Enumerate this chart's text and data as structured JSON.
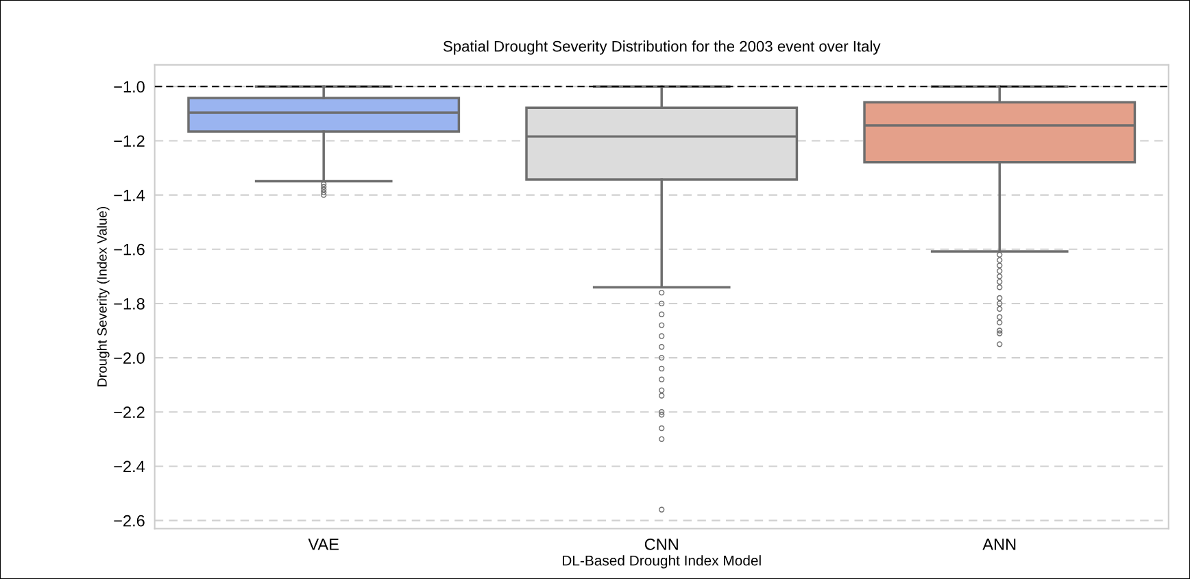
{
  "chart_data": {
    "type": "box",
    "title": "Spatial Drought Severity Distribution for the 2003 event over Italy",
    "xlabel": "DL-Based Drought Index Model",
    "ylabel": "Drought Severity (Index Value)",
    "categories": [
      "VAE",
      "CNN",
      "ANN"
    ],
    "colors": [
      "#9ab4f0",
      "#dcdcdc",
      "#e4a08a"
    ],
    "boxes": [
      {
        "low": -1.349,
        "q1": -1.166,
        "median": -1.096,
        "q3": -1.042,
        "high": -1.0,
        "outliers": [
          -1.36,
          -1.37,
          -1.38,
          -1.39,
          -1.4
        ]
      },
      {
        "low": -1.74,
        "q1": -1.343,
        "median": -1.184,
        "q3": -1.078,
        "high": -1.0,
        "outliers": [
          -1.76,
          -1.8,
          -1.84,
          -1.88,
          -1.92,
          -1.96,
          -2.0,
          -2.04,
          -2.08,
          -2.12,
          -2.14,
          -2.2,
          -2.21,
          -2.26,
          -2.3,
          -2.56
        ]
      },
      {
        "low": -1.608,
        "q1": -1.279,
        "median": -1.143,
        "q3": -1.058,
        "high": -1.0,
        "outliers": [
          -1.62,
          -1.64,
          -1.66,
          -1.68,
          -1.7,
          -1.72,
          -1.74,
          -1.78,
          -1.8,
          -1.82,
          -1.85,
          -1.87,
          -1.9,
          -1.91,
          -1.95
        ]
      }
    ],
    "ylim": [
      -2.63,
      -0.92
    ],
    "yticks": [
      {
        "value": -2.6,
        "label": "−2.6"
      },
      {
        "value": -2.4,
        "label": "−2.4"
      },
      {
        "value": -2.2,
        "label": "−2.2"
      },
      {
        "value": -2.0,
        "label": "−2.0"
      },
      {
        "value": -1.8,
        "label": "−1.8"
      },
      {
        "value": -1.6,
        "label": "−1.6"
      },
      {
        "value": -1.4,
        "label": "−1.4"
      },
      {
        "value": -1.2,
        "label": "−1.2"
      },
      {
        "value": -1.0,
        "label": "−1.0"
      }
    ],
    "grid": "y",
    "ref_lines": [
      {
        "axis": "y",
        "value": -1.0,
        "label": null,
        "color": "#000000",
        "line_style": "dashed"
      }
    ]
  }
}
